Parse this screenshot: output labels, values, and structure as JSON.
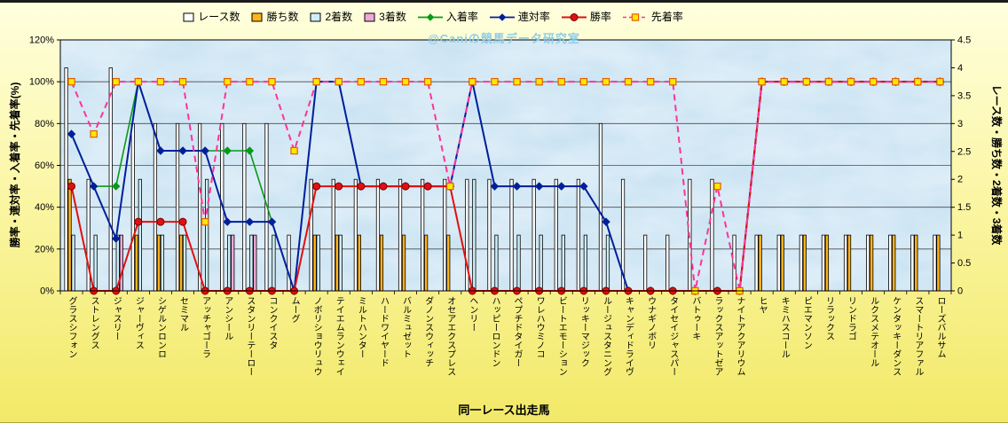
{
  "watermark": "@Caniの競馬データ研究室",
  "colors": {
    "background_top": "#FFFFDE",
    "background_mid": "#FBF6A6",
    "background_bottom": "#F2E968",
    "plot_fill": "#C3DFF0",
    "grid": "#4A4A4A",
    "axis": "#000000",
    "marker_square_fill": "#FFE800",
    "marker_square_stroke": "#E06000",
    "watermark": "#8FCDE6"
  },
  "axes": {
    "left_ticks": [
      "0%",
      "20%",
      "40%",
      "60%",
      "80%",
      "100%",
      "120%"
    ],
    "right_ticks": [
      "0",
      "0.5",
      "1",
      "1.5",
      "2",
      "2.5",
      "3",
      "3.5",
      "4",
      "4.5"
    ]
  },
  "legend": {
    "items": [
      {
        "key": "race_count",
        "label": "レース数",
        "swatch": "bar",
        "color": "#FFFFFF"
      },
      {
        "key": "win_count",
        "label": "勝ち数",
        "swatch": "bar",
        "color": "#FFB41E"
      },
      {
        "key": "second_count",
        "label": "2着数",
        "swatch": "bar",
        "color": "#CDEFF9"
      },
      {
        "key": "third_count",
        "label": "3着数",
        "swatch": "bar",
        "color": "#EFA8D8"
      },
      {
        "key": "finish_rate",
        "label": "入着率",
        "swatch": "line-diamond",
        "color": "#089919"
      },
      {
        "key": "quinella_rate",
        "label": "連対率",
        "swatch": "line-diamond",
        "color": "#001F9E"
      },
      {
        "key": "win_rate",
        "label": "勝率",
        "swatch": "line-circle",
        "color": "#E01010"
      },
      {
        "key": "ahead_rate",
        "label": "先着率",
        "swatch": "line-square-dash",
        "color": "#FF3399"
      }
    ]
  },
  "chart_data": {
    "type": "bar+line",
    "x_label": "同一レース出走馬",
    "legend_position": "top",
    "grid": "horizontal",
    "left_axis": {
      "label": "勝率・連対率・入着率・先着率(%)",
      "range": [
        0,
        120
      ],
      "tick_step": 20,
      "unit": "%"
    },
    "right_axis": {
      "label": "レース数・勝ち数・2着数・3着数",
      "range": [
        0,
        4.5
      ],
      "tick_step": 0.5
    },
    "categories": [
      "グラスシフォン",
      "ストレングス",
      "ジャスリー",
      "ジャーヴィス",
      "シゲルンロンロ",
      "セミマル",
      "アッチャゴーラ",
      "アンシール",
      "スタンリーテーロー",
      "コンクイスタ",
      "ムーグ",
      "ノボリショウリュウ",
      "テイエムランウェイ",
      "ミルトハンター",
      "ハードワイヤード",
      "バルミュゼット",
      "ダノンスウィッチ",
      "オセアエクスプレス",
      "ヘンリー",
      "ハッピーロンドン",
      "ペプチドタイガー",
      "ワレハウミノコ",
      "ビートエモーション",
      "リッキーマジック",
      "ルージュスタニング",
      "キャンディドライヴ",
      "ウナギノボリ",
      "タイセイジャスパー",
      "バトゥーキ",
      "ラックスアットゼア",
      "ナイトアクアリウム",
      "ヒヤ",
      "キミハスコール",
      "ピエマンソン",
      "リラックス",
      "リンドラゴ",
      "ルクスメテオール",
      "ケンタッキーダンス",
      "スマートリアファル",
      "ローズバルサム"
    ],
    "bar_series": [
      {
        "key": "race_count",
        "name": "レース数",
        "axis": "right",
        "color": "#FFFFFF",
        "values": [
          4,
          2,
          4,
          3,
          3,
          3,
          3,
          3,
          3,
          3,
          1,
          2,
          2,
          2,
          2,
          2,
          2,
          2,
          2,
          2,
          2,
          2,
          2,
          2,
          3,
          2,
          1,
          1,
          2,
          2,
          1,
          1,
          1,
          1,
          1,
          1,
          1,
          1,
          1,
          1
        ]
      },
      {
        "key": "win_count",
        "name": "勝ち数",
        "axis": "right",
        "color": "#FFB41E",
        "values": [
          2,
          0,
          0,
          1,
          1,
          1,
          0,
          0,
          0,
          0,
          0,
          1,
          1,
          1,
          1,
          1,
          1,
          1,
          0,
          0,
          0,
          0,
          0,
          0,
          0,
          0,
          0,
          0,
          0,
          0,
          0,
          1,
          1,
          1,
          1,
          1,
          1,
          1,
          1,
          1
        ]
      },
      {
        "key": "second_count",
        "name": "2着数",
        "axis": "right",
        "color": "#CDEFF9",
        "values": [
          1,
          1,
          1,
          2,
          1,
          1,
          2,
          1,
          1,
          1,
          0,
          1,
          1,
          0,
          0,
          0,
          0,
          0,
          2,
          1,
          1,
          1,
          1,
          1,
          1,
          0,
          0,
          0,
          0,
          0,
          0,
          0,
          0,
          0,
          0,
          0,
          0,
          0,
          0,
          0
        ]
      },
      {
        "key": "third_count",
        "name": "3着数",
        "axis": "right",
        "color": "#EFA8D8",
        "values": [
          0,
          0,
          1,
          0,
          0,
          0,
          0,
          1,
          1,
          0,
          0,
          0,
          0,
          0,
          0,
          0,
          0,
          0,
          0,
          0,
          0,
          0,
          0,
          0,
          0,
          0,
          0,
          0,
          0,
          0,
          0,
          0,
          0,
          0,
          0,
          0,
          0,
          0,
          0,
          0
        ]
      }
    ],
    "line_series": [
      {
        "key": "finish_rate",
        "name": "入着率",
        "axis": "left",
        "unit": "%",
        "color": "#089919",
        "marker": "diamond",
        "dash": "",
        "values": [
          75,
          50,
          50,
          100,
          67,
          67,
          67,
          67,
          67,
          33,
          0,
          100,
          100,
          50,
          50,
          50,
          50,
          50,
          100,
          50,
          50,
          50,
          50,
          50,
          33,
          0,
          0,
          0,
          0,
          0,
          0,
          100,
          100,
          100,
          100,
          100,
          100,
          100,
          100,
          100
        ]
      },
      {
        "key": "quinella_rate",
        "name": "連対率",
        "axis": "left",
        "unit": "%",
        "color": "#001F9E",
        "marker": "diamond",
        "dash": "",
        "values": [
          75,
          50,
          25,
          100,
          67,
          67,
          67,
          33,
          33,
          33,
          0,
          100,
          100,
          50,
          50,
          50,
          50,
          50,
          100,
          50,
          50,
          50,
          50,
          50,
          33,
          0,
          0,
          0,
          0,
          0,
          0,
          100,
          100,
          100,
          100,
          100,
          100,
          100,
          100,
          100
        ]
      },
      {
        "key": "win_rate",
        "name": "勝率",
        "axis": "left",
        "unit": "%",
        "color": "#E01010",
        "marker": "circle",
        "dash": "",
        "values": [
          50,
          0,
          0,
          33,
          33,
          33,
          0,
          0,
          0,
          0,
          0,
          50,
          50,
          50,
          50,
          50,
          50,
          50,
          0,
          0,
          0,
          0,
          0,
          0,
          0,
          0,
          0,
          0,
          0,
          0,
          0,
          100,
          100,
          100,
          100,
          100,
          100,
          100,
          100,
          100
        ]
      },
      {
        "key": "ahead_rate",
        "name": "先着率",
        "axis": "left",
        "unit": "%",
        "color": "#FF3399",
        "marker": "square",
        "dash": "7 5",
        "values": [
          100,
          75,
          100,
          100,
          100,
          100,
          33,
          100,
          100,
          100,
          67,
          100,
          100,
          100,
          100,
          100,
          100,
          50,
          100,
          100,
          100,
          100,
          100,
          100,
          100,
          100,
          100,
          100,
          0,
          50,
          0,
          100,
          100,
          100,
          100,
          100,
          100,
          100,
          100,
          100
        ]
      }
    ]
  }
}
